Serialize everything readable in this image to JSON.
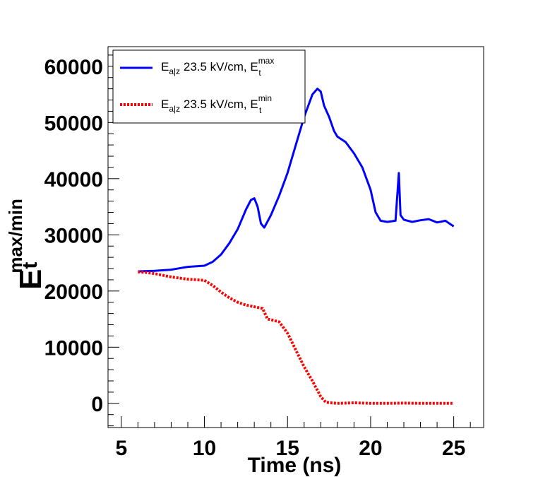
{
  "chart_data": {
    "type": "line",
    "title": "",
    "xlabel": "Time (ns)",
    "ylabel": {
      "base": "E",
      "sub": "t",
      "sup": "max/min"
    },
    "xlim": [
      4.2,
      26.8
    ],
    "ylim": [
      -4300,
      63500
    ],
    "xticks": [
      5,
      10,
      15,
      20,
      25
    ],
    "yticks": [
      0,
      10000,
      20000,
      30000,
      40000,
      50000,
      60000
    ],
    "xtick_labels": [
      "5",
      "10",
      "15",
      "20",
      "25"
    ],
    "ytick_labels": [
      "0",
      "10000",
      "20000",
      "30000",
      "40000",
      "50000",
      "60000"
    ],
    "legend_position": "top-left",
    "series": [
      {
        "name": "E_a|z 23.5 kV/cm, E_t^max",
        "legend": {
          "base": "E",
          "sub": "a|z",
          "text": " 23.5 kV/cm, E",
          "sup2": "max",
          "sub2": "t"
        },
        "color": "#0000ff",
        "style": "solid",
        "x": [
          6.0,
          7.0,
          8.0,
          9.0,
          10.0,
          10.5,
          11.0,
          11.5,
          12.0,
          12.5,
          12.8,
          13.0,
          13.2,
          13.4,
          13.6,
          14.0,
          14.5,
          15.0,
          15.5,
          16.0,
          16.5,
          16.8,
          17.0,
          17.2,
          17.5,
          17.8,
          18.0,
          18.5,
          19.0,
          19.5,
          20.0,
          20.3,
          20.6,
          21.0,
          21.5,
          21.7,
          21.8,
          22.0,
          22.5,
          23.0,
          23.5,
          24.0,
          24.5,
          25.0
        ],
        "y": [
          23500,
          23600,
          23800,
          24300,
          24500,
          25200,
          26500,
          28500,
          31000,
          34500,
          36200,
          36500,
          35000,
          32000,
          31300,
          33500,
          37000,
          41000,
          46000,
          51000,
          55000,
          56000,
          55500,
          53000,
          51000,
          48500,
          47500,
          46500,
          44500,
          42000,
          38000,
          34000,
          32500,
          32300,
          32500,
          41000,
          33500,
          32700,
          32300,
          32600,
          32800,
          32200,
          32500,
          31500
        ]
      },
      {
        "name": "E_a|z 23.5 kV/cm, E_t^min",
        "legend": {
          "base": "E",
          "sub": "a|z",
          "text": " 23.5 kV/cm, E",
          "sup2": "min",
          "sub2": "t"
        },
        "color": "#ff0000",
        "style": "dotted",
        "x": [
          6.0,
          6.5,
          7.0,
          7.5,
          8.0,
          8.5,
          9.0,
          9.5,
          10.0,
          10.5,
          11.0,
          11.5,
          12.0,
          12.5,
          13.0,
          13.5,
          13.8,
          14.0,
          14.5,
          15.0,
          15.5,
          16.0,
          16.5,
          17.0,
          17.3,
          17.6,
          18.0,
          19.0,
          20.0,
          21.0,
          22.0,
          23.0,
          24.0,
          25.0
        ],
        "y": [
          23400,
          23300,
          23100,
          22800,
          22500,
          22300,
          22100,
          22000,
          21900,
          21000,
          19800,
          18800,
          18000,
          17500,
          17200,
          16900,
          15000,
          14900,
          14500,
          12500,
          9500,
          6500,
          4000,
          1200,
          200,
          100,
          0,
          100,
          0,
          0,
          50,
          0,
          0,
          0
        ]
      }
    ]
  }
}
